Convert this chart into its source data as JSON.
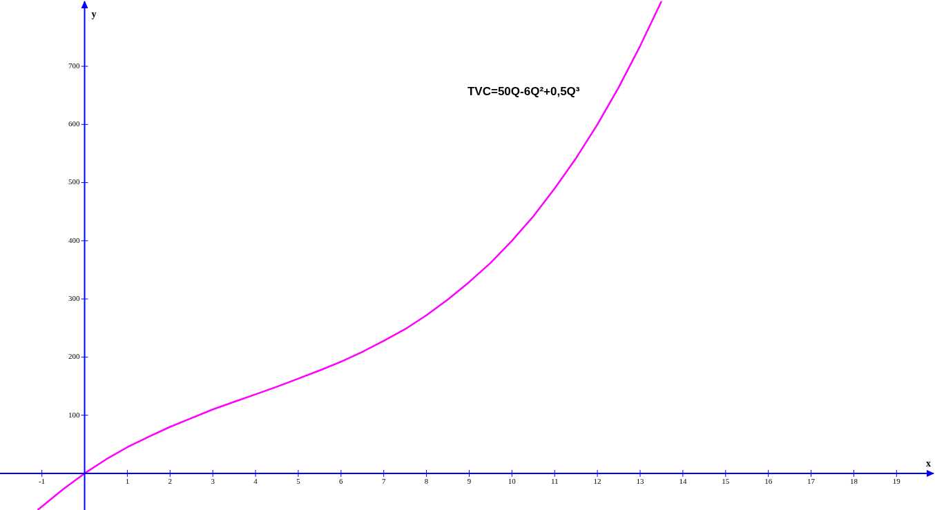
{
  "chart_data": {
    "type": "line",
    "xlabel": "x",
    "ylabel": "y",
    "annotations": [
      "TVC=50Q-6Q²+0,5Q³"
    ],
    "x": [
      -1.1,
      -1,
      -0.5,
      0,
      0.5,
      1,
      1.5,
      2,
      2.5,
      3,
      3.5,
      4,
      4.5,
      5,
      5.5,
      6,
      6.5,
      7,
      7.5,
      8,
      8.5,
      9,
      9.5,
      10,
      10.5,
      11,
      11.5,
      12,
      12.5,
      13,
      13.5
    ],
    "series": [
      {
        "color": "#ff00ff",
        "values": [
          -63,
          -57,
          -27,
          0,
          24,
          45,
          63,
          80,
          95,
          110,
          123,
          136,
          149,
          163,
          177,
          192,
          209,
          228,
          248,
          272,
          299,
          329,
          362,
          400,
          442,
          490,
          542,
          600,
          664,
          735,
          812
        ]
      }
    ],
    "xlim": [
      -1.98,
      19.9
    ],
    "ylim": [
      -63,
      814
    ],
    "xticks": [
      -1,
      1,
      2,
      3,
      4,
      5,
      6,
      7,
      8,
      9,
      10,
      11,
      12,
      13,
      14,
      15,
      16,
      17,
      18,
      19
    ],
    "yticks": [
      100,
      200,
      300,
      400,
      500,
      600,
      700
    ],
    "legend": false,
    "marker": "none",
    "line_style": "solid"
  }
}
